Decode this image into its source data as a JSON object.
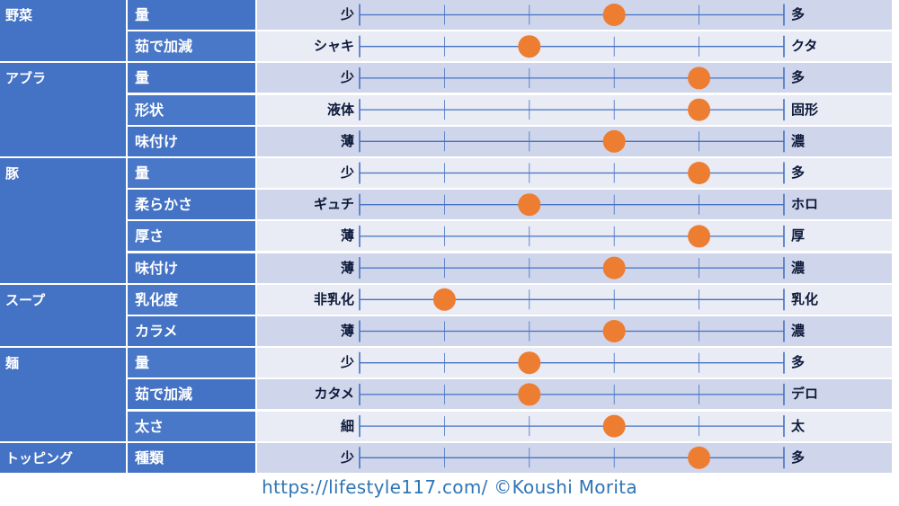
{
  "chart_data": {
    "type": "scatter",
    "title": "",
    "scale_points": 6,
    "marker_color": "#ed7d31",
    "line_color": "#4472c4",
    "groups": [
      {
        "name": "野菜",
        "items": [
          {
            "label": "量",
            "left": "少",
            "right": "多",
            "value": 4
          },
          {
            "label": "茹で加減",
            "left": "シャキ",
            "right": "クタ",
            "value": 3
          }
        ]
      },
      {
        "name": "アブラ",
        "items": [
          {
            "label": "量",
            "left": "少",
            "right": "多",
            "value": 5
          },
          {
            "label": "形状",
            "left": "液体",
            "right": "固形",
            "value": 5
          },
          {
            "label": "味付け",
            "left": "薄",
            "right": "濃",
            "value": 4
          }
        ]
      },
      {
        "name": "豚",
        "items": [
          {
            "label": "量",
            "left": "少",
            "right": "多",
            "value": 5
          },
          {
            "label": "柔らかさ",
            "left": "ギュチ",
            "right": "ホロ",
            "value": 3
          },
          {
            "label": "厚さ",
            "left": "薄",
            "right": "厚",
            "value": 5
          },
          {
            "label": "味付け",
            "left": "薄",
            "right": "濃",
            "value": 4
          }
        ]
      },
      {
        "name": "スープ",
        "items": [
          {
            "label": "乳化度",
            "left": "非乳化",
            "right": "乳化",
            "value": 2
          },
          {
            "label": "カラメ",
            "left": "薄",
            "right": "濃",
            "value": 4
          }
        ]
      },
      {
        "name": "麺",
        "items": [
          {
            "label": "量",
            "left": "少",
            "right": "多",
            "value": 3
          },
          {
            "label": "茹で加減",
            "left": "カタメ",
            "right": "デロ",
            "value": 3
          },
          {
            "label": "太さ",
            "left": "細",
            "right": "太",
            "value": 4
          }
        ]
      },
      {
        "name": "トッピング",
        "items": [
          {
            "label": "種類",
            "left": "少",
            "right": "多",
            "value": 5
          }
        ]
      }
    ]
  },
  "footer": {
    "credit": "https://lifestyle117.com/  ©Koushi Morita"
  }
}
